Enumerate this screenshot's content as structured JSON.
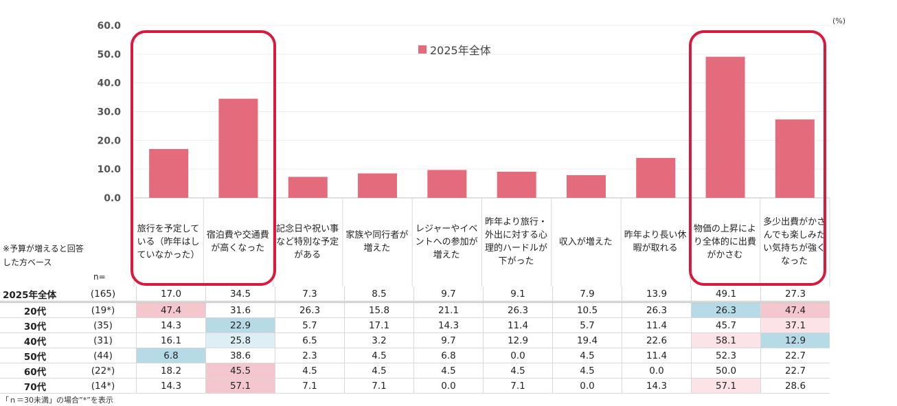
{
  "chart_data": {
    "type": "bar",
    "categories": [
      "旅行を予定している（昨年はしていなかった）",
      "宿泊費や交通費が高くなった",
      "記念日や祝い事など特別な予定がある",
      "家族や同行者が増えた",
      "レジャーやイベントへの参加が増えた",
      "昨年より旅行・外出に対する心理的ハードルが下がった",
      "収入が増えた",
      "昨年より長い休暇が取れる",
      "物価の上昇により全体的に出費がかさむ",
      "多少出費がかさんでも楽しみたい気持ちが強くなった"
    ],
    "series": [
      {
        "name": "2025年全体",
        "values": [
          17.0,
          34.5,
          7.3,
          8.5,
          9.7,
          9.1,
          7.9,
          13.9,
          49.1,
          27.3
        ]
      }
    ],
    "ylim": [
      0,
      60
    ],
    "yticks": [
      "0.0",
      "10.0",
      "20.0",
      "30.0",
      "40.0",
      "50.0",
      "60.0"
    ],
    "unit": "(%)",
    "legend": "top-center",
    "grid": true,
    "bar_color": "#e46b7c"
  },
  "category_labels": [
    "旅行を予定している（昨年はしていなかった）",
    "宿泊費や交通費が高くなった",
    "記念日や祝い事など特別な予定がある",
    "家族や同行者が増えた",
    "レジャーやイベントへの参加が増えた",
    "昨年より旅行・外出に対する心理的ハードルが下がった",
    "収入が増えた",
    "昨年より長い休暇が取れる",
    "物価の上昇により全体的に出費がかさむ",
    "多少出費がかさんでも楽しみたい気持ちが強くなった"
  ],
  "base_note": "※予算が増えると回答した方ベース",
  "n_header": "n=",
  "legend_label": "2025年全体",
  "unit_label": "(%)",
  "footnote": "「ｎ＝30未満」の場合”*”を表示",
  "highlight_colors": {
    "red": "#f4c7cf",
    "pink": "#fbe3e8",
    "blue": "#b7dbe6",
    "light_blue": "#ddeef4",
    "frame": "#d91a3c"
  },
  "table": [
    {
      "label": "2025年全体",
      "n": "(165)",
      "values": [
        "17.0",
        "34.5",
        "7.3",
        "8.5",
        "9.7",
        "9.1",
        "7.9",
        "13.9",
        "49.1",
        "27.3"
      ],
      "hl": [
        "",
        "",
        "",
        "",
        "",
        "",
        "",
        "",
        "",
        ""
      ]
    },
    {
      "label": "20代",
      "n": "(19*)",
      "values": [
        "47.4",
        "31.6",
        "26.3",
        "15.8",
        "21.1",
        "26.3",
        "10.5",
        "26.3",
        "26.3",
        "47.4"
      ],
      "hl": [
        "red",
        "",
        "",
        "",
        "",
        "",
        "",
        "",
        "blue",
        "red"
      ]
    },
    {
      "label": "30代",
      "n": "(35)",
      "values": [
        "14.3",
        "22.9",
        "5.7",
        "17.1",
        "14.3",
        "11.4",
        "5.7",
        "11.4",
        "45.7",
        "37.1"
      ],
      "hl": [
        "",
        "blue",
        "",
        "",
        "",
        "",
        "",
        "",
        "",
        "pink"
      ]
    },
    {
      "label": "40代",
      "n": "(31)",
      "values": [
        "16.1",
        "25.8",
        "6.5",
        "3.2",
        "9.7",
        "12.9",
        "19.4",
        "22.6",
        "58.1",
        "12.9"
      ],
      "hl": [
        "",
        "light_blue",
        "",
        "",
        "",
        "",
        "",
        "",
        "pink",
        "blue"
      ]
    },
    {
      "label": "50代",
      "n": "(44)",
      "values": [
        "6.8",
        "38.6",
        "2.3",
        "4.5",
        "6.8",
        "0.0",
        "4.5",
        "11.4",
        "52.3",
        "22.7"
      ],
      "hl": [
        "blue",
        "",
        "",
        "",
        "",
        "",
        "",
        "",
        "",
        ""
      ]
    },
    {
      "label": "60代",
      "n": "(22*)",
      "values": [
        "18.2",
        "45.5",
        "4.5",
        "4.5",
        "4.5",
        "4.5",
        "4.5",
        "0.0",
        "50.0",
        "22.7"
      ],
      "hl": [
        "",
        "red",
        "",
        "",
        "",
        "",
        "",
        "",
        "",
        ""
      ]
    },
    {
      "label": "70代",
      "n": "(14*)",
      "values": [
        "14.3",
        "57.1",
        "7.1",
        "7.1",
        "0.0",
        "7.1",
        "0.0",
        "14.3",
        "57.1",
        "28.6"
      ],
      "hl": [
        "",
        "red",
        "",
        "",
        "",
        "",
        "",
        "",
        "pink",
        ""
      ]
    }
  ]
}
